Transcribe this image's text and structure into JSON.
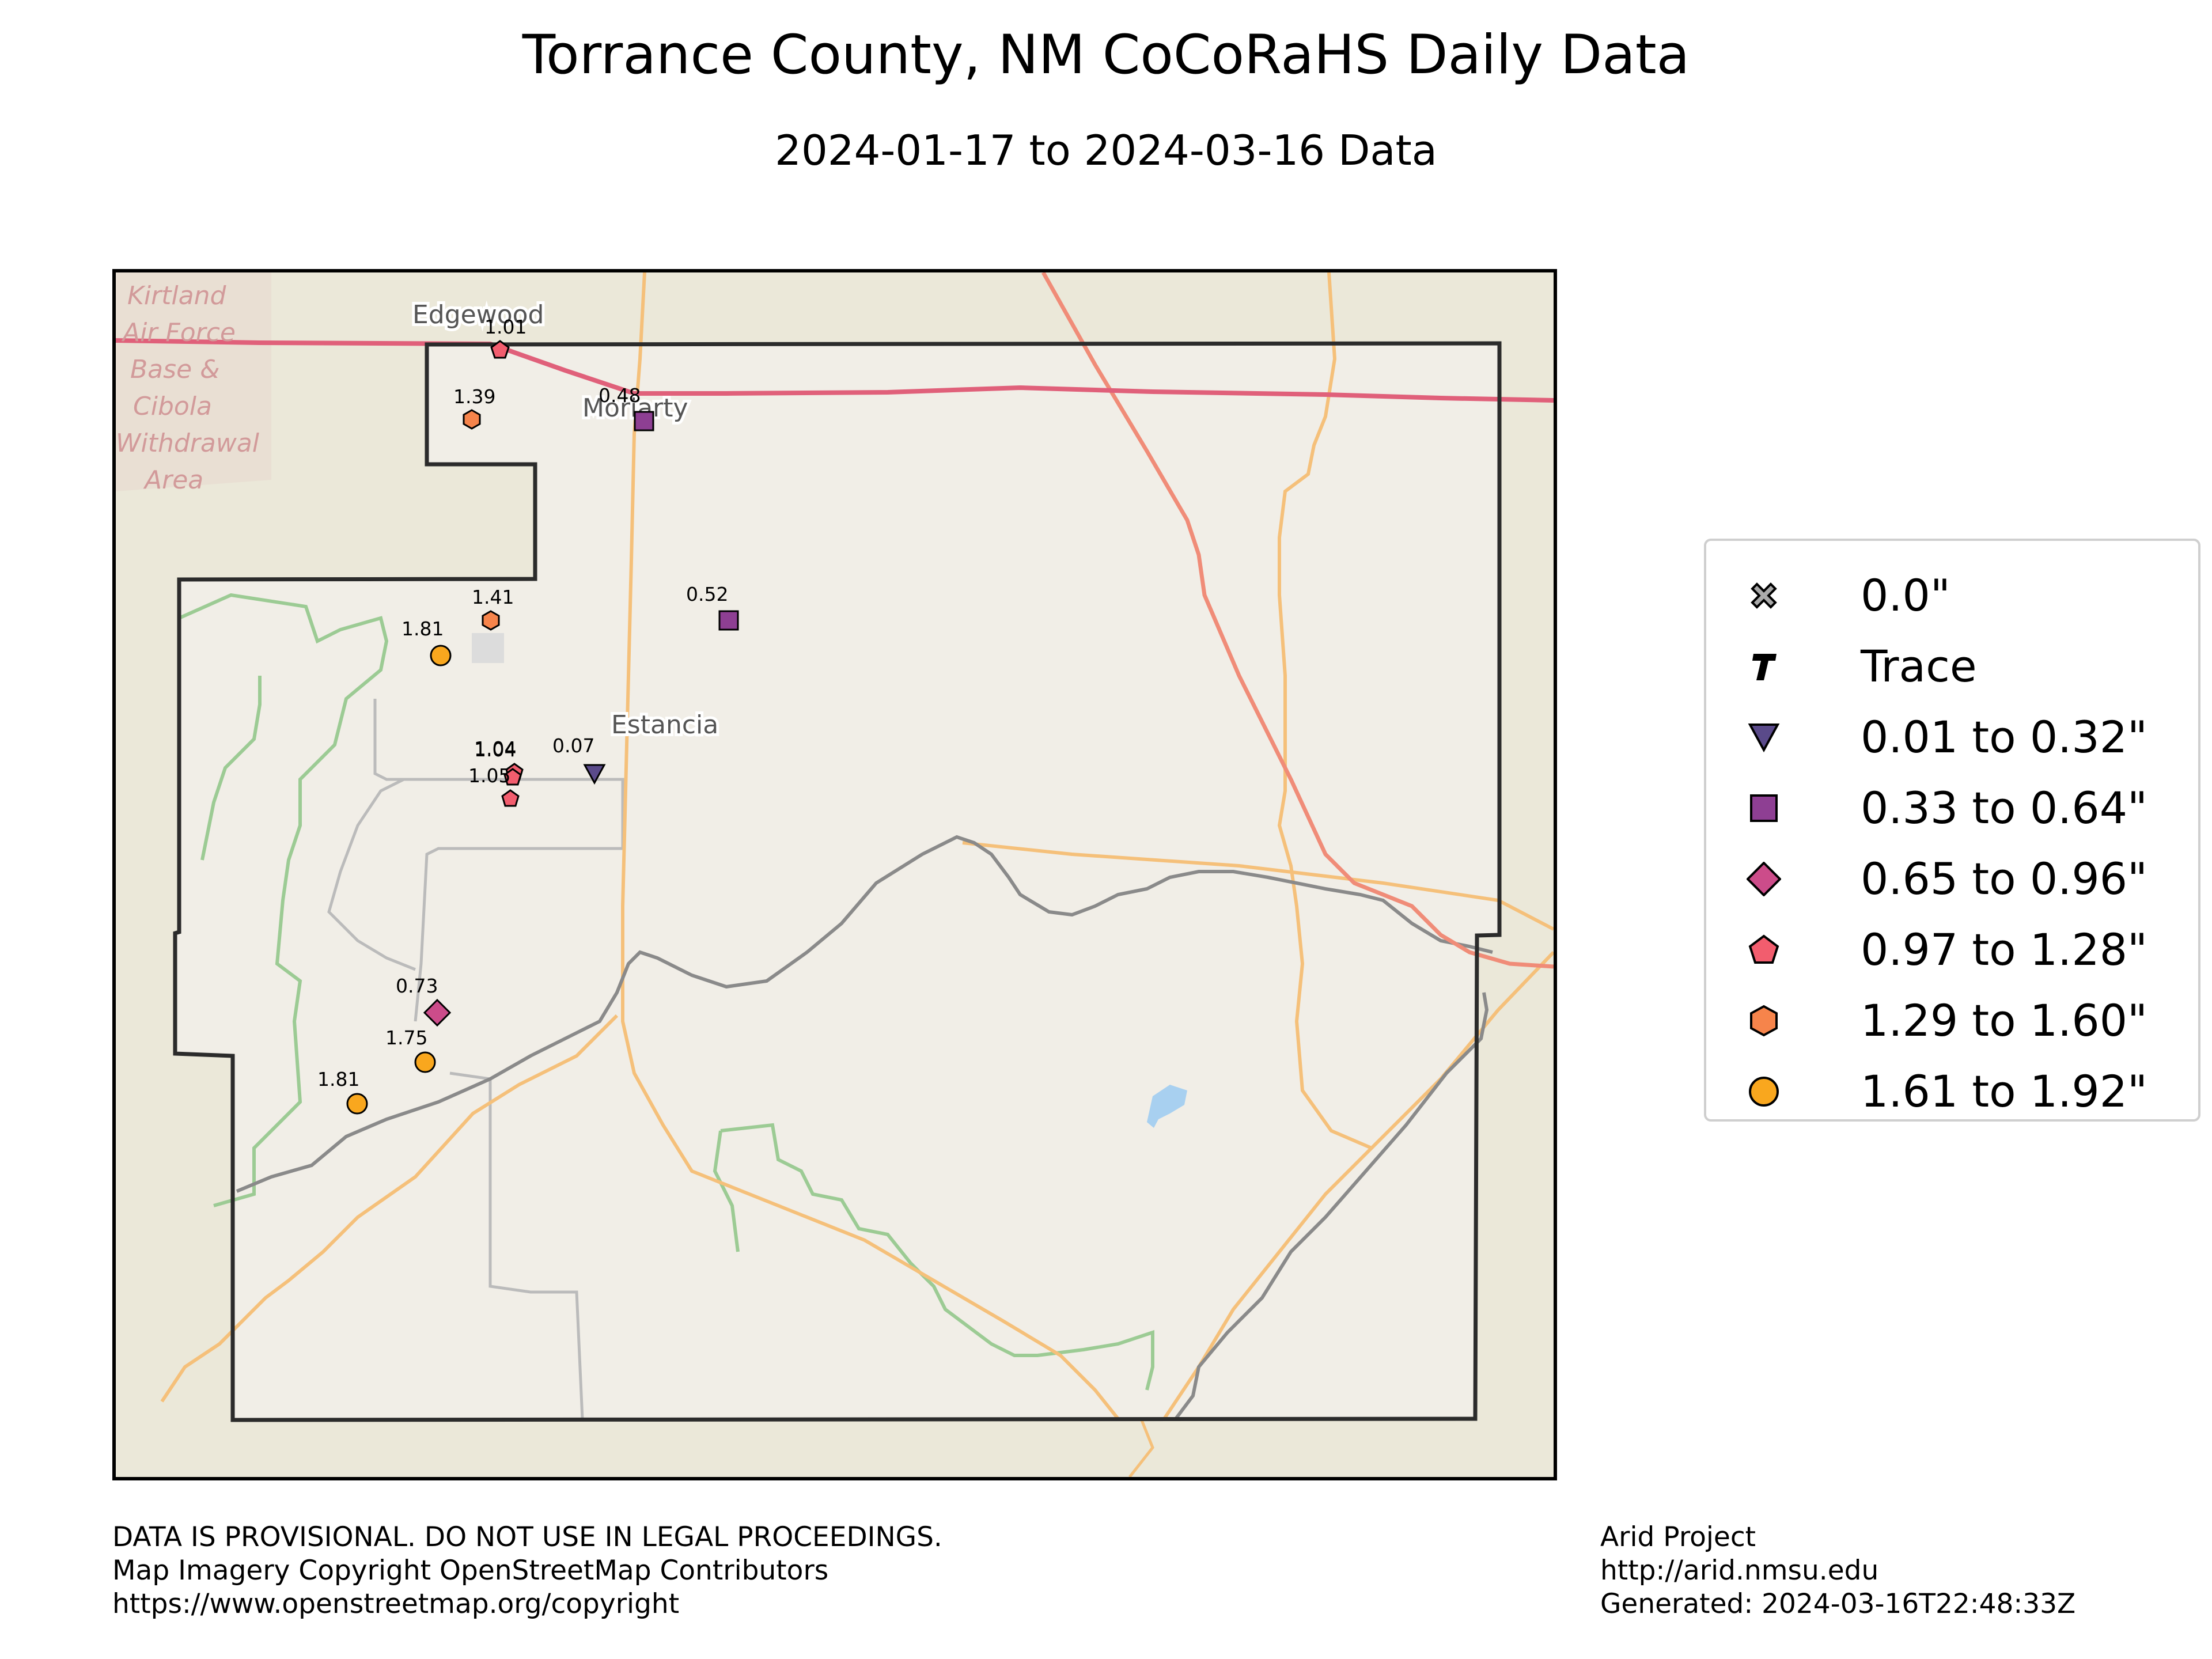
{
  "title": "Torrance County, NM CoCoRaHS Daily Data",
  "subtitle": "2024-01-17 to 2024-03-16 Data",
  "map": {
    "base_label_lines": [
      "Kirtland",
      "Air Force",
      "Base &",
      "Cibola",
      "Withdrawal",
      "Area"
    ],
    "place_labels": [
      "Edgewood",
      "Moriarty",
      "Estancia"
    ],
    "colors": {
      "county_outline": "#2b2b2b",
      "interstate": "#e0607a",
      "us_highway": "#f0a080",
      "state_road": "#f5c07a",
      "railroad": "#888888",
      "forest_boundary": "#9ccb94",
      "water": "#a8d0f0"
    }
  },
  "stations": [
    {
      "value": "1.01",
      "category": "0.97 to 1.28\""
    },
    {
      "value": "1.39",
      "category": "1.29 to 1.60\""
    },
    {
      "value": "0.48",
      "category": "0.33 to 0.64\""
    },
    {
      "value": "1.41",
      "category": "1.29 to 1.60\""
    },
    {
      "value": "0.52",
      "category": "0.33 to 0.64\""
    },
    {
      "value": "1.81",
      "category": "1.61 to 1.92\""
    },
    {
      "value": "1.04",
      "category": "0.97 to 1.28\""
    },
    {
      "value": "1.04",
      "category": "0.97 to 1.28\""
    },
    {
      "value": "0.07",
      "category": "0.01 to 0.32\""
    },
    {
      "value": "1.05",
      "category": "0.97 to 1.28\""
    },
    {
      "value": "0.73",
      "category": "0.65 to 0.96\""
    },
    {
      "value": "1.75",
      "category": "1.61 to 1.92\""
    },
    {
      "value": "1.81",
      "category": "1.61 to 1.92\""
    }
  ],
  "legend": {
    "items": [
      {
        "label": "0.0\"",
        "symbol": "x-icon",
        "color": "#aaaaaa"
      },
      {
        "label": "Trace",
        "symbol": "trace-t-icon",
        "color": "#000000"
      },
      {
        "label": "0.01 to 0.32\"",
        "symbol": "triangle-down-icon",
        "color": "#5a4a8a"
      },
      {
        "label": "0.33 to 0.64\"",
        "symbol": "square-icon",
        "color": "#8e3f93"
      },
      {
        "label": "0.65 to 0.96\"",
        "symbol": "diamond-icon",
        "color": "#cc4c8a"
      },
      {
        "label": "0.97 to 1.28\"",
        "symbol": "pentagon-icon",
        "color": "#f25d6e"
      },
      {
        "label": "1.29 to 1.60\"",
        "symbol": "hexagon-icon",
        "color": "#f6844b"
      },
      {
        "label": "1.61 to 1.92\"",
        "symbol": "circle-icon",
        "color": "#f9a71e"
      }
    ]
  },
  "footer": {
    "left_lines": [
      "DATA IS PROVISIONAL. DO NOT USE IN LEGAL PROCEEDINGS.",
      "Map Imagery Copyright OpenStreetMap Contributors",
      "https://www.openstreetmap.org/copyright"
    ],
    "right_lines": [
      "Arid Project",
      "http://arid.nmsu.edu",
      "Generated: 2024-03-16T22:48:33Z"
    ]
  }
}
